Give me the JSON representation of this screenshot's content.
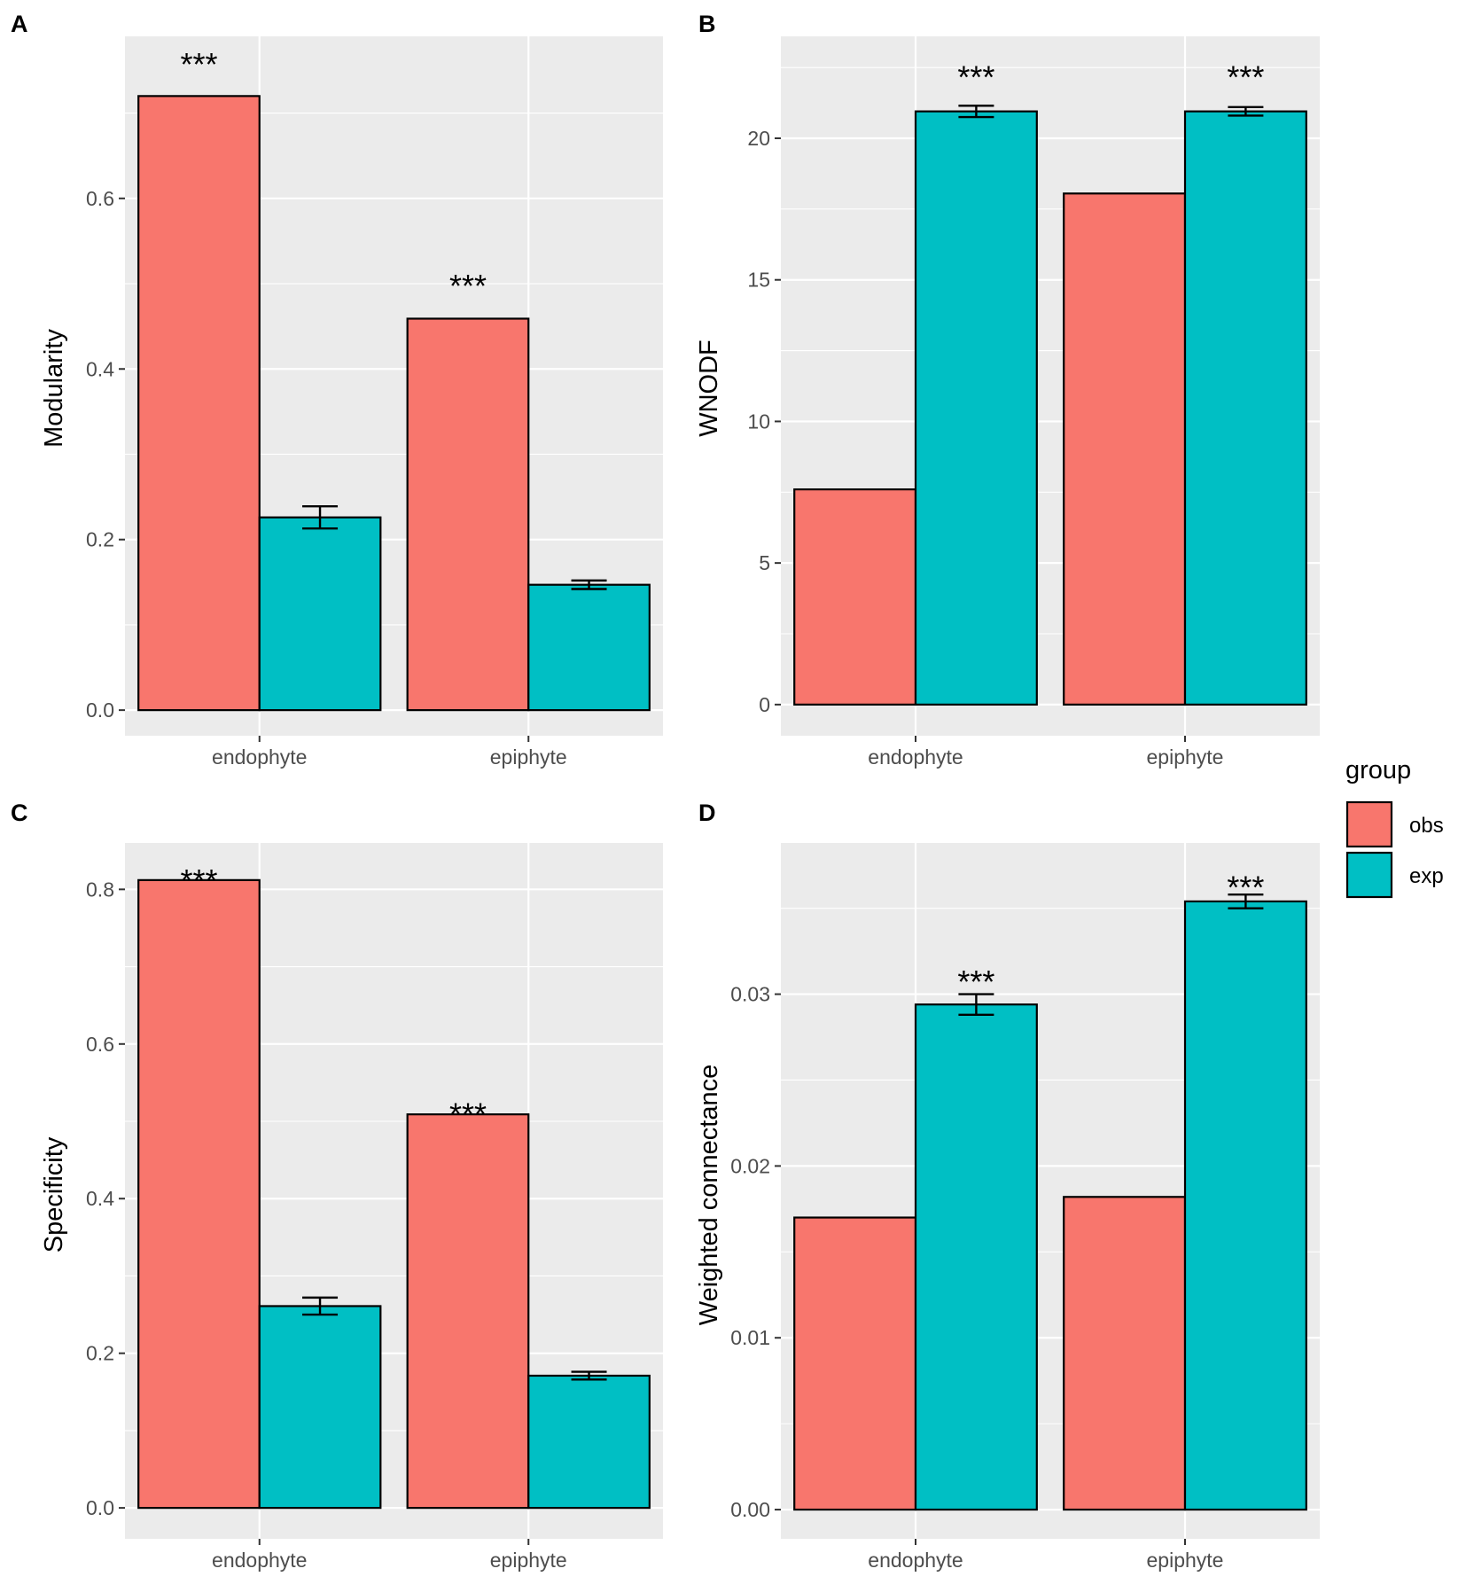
{
  "colors": {
    "obs": "#F8766D",
    "exp": "#00BFC4",
    "panel_bg": "#EBEBEB",
    "grid": "#FFFFFF",
    "outline": "#000000"
  },
  "legend": {
    "title": "group",
    "items": [
      {
        "key": "obs",
        "label": "obs"
      },
      {
        "key": "exp",
        "label": "exp"
      }
    ]
  },
  "chart_data": [
    {
      "panel": "A",
      "type": "bar",
      "ylabel": "Modularity",
      "xlabel": "",
      "categories": [
        "endophyte",
        "epiphyte"
      ],
      "ylim": [
        -0.03,
        0.79
      ],
      "yticks": [
        0.0,
        0.2,
        0.4,
        0.6
      ],
      "tick_labels": [
        "0.0",
        "0.2",
        "0.4",
        "0.6"
      ],
      "series": [
        {
          "name": "obs",
          "values": [
            0.72,
            0.459
          ],
          "errors": [
            null,
            null
          ]
        },
        {
          "name": "exp",
          "values": [
            0.226,
            0.147
          ],
          "errors": [
            0.013,
            0.005
          ]
        }
      ],
      "annotations": [
        {
          "category": "endophyte",
          "series": "obs",
          "y": 0.765,
          "text": "***"
        },
        {
          "category": "epiphyte",
          "series": "obs",
          "y": 0.505,
          "text": "***"
        }
      ]
    },
    {
      "panel": "B",
      "type": "bar",
      "ylabel": "WNODF",
      "xlabel": "",
      "categories": [
        "endophyte",
        "epiphyte"
      ],
      "ylim": [
        -1.1,
        23.6
      ],
      "yticks": [
        0,
        5,
        10,
        15,
        20
      ],
      "tick_labels": [
        "0",
        "5",
        "10",
        "15",
        "20"
      ],
      "series": [
        {
          "name": "obs",
          "values": [
            7.6,
            18.05
          ],
          "errors": [
            null,
            null
          ]
        },
        {
          "name": "exp",
          "values": [
            20.95,
            20.95
          ],
          "errors": [
            0.2,
            0.15
          ]
        }
      ],
      "annotations": [
        {
          "category": "endophyte",
          "series": "exp",
          "y": 22.4,
          "text": "***"
        },
        {
          "category": "epiphyte",
          "series": "exp",
          "y": 22.4,
          "text": "***"
        }
      ]
    },
    {
      "panel": "C",
      "type": "bar",
      "ylabel": "Specificity",
      "xlabel": "",
      "categories": [
        "endophyte",
        "epiphyte"
      ],
      "ylim": [
        -0.04,
        0.86
      ],
      "yticks": [
        0.0,
        0.2,
        0.4,
        0.6,
        0.8
      ],
      "tick_labels": [
        "0.0",
        "0.2",
        "0.4",
        "0.6",
        "0.8"
      ],
      "series": [
        {
          "name": "obs",
          "values": [
            0.812,
            0.509
          ],
          "errors": [
            null,
            null
          ]
        },
        {
          "name": "exp",
          "values": [
            0.261,
            0.171
          ],
          "errors": [
            0.011,
            0.005
          ]
        }
      ],
      "annotations": [
        {
          "category": "endophyte",
          "series": "obs",
          "y": 0.82,
          "text": "***"
        },
        {
          "category": "epiphyte",
          "series": "obs",
          "y": 0.518,
          "text": "***"
        }
      ]
    },
    {
      "panel": "D",
      "type": "bar",
      "ylabel": "Weighted connectance",
      "xlabel": "",
      "categories": [
        "endophyte",
        "epiphyte"
      ],
      "ylim": [
        -0.0017,
        0.0388
      ],
      "yticks": [
        0.0,
        0.01,
        0.02,
        0.03
      ],
      "tick_labels": [
        "0.00",
        "0.01",
        "0.02",
        "0.03"
      ],
      "series": [
        {
          "name": "obs",
          "values": [
            0.017,
            0.0182
          ],
          "errors": [
            null,
            null
          ]
        },
        {
          "name": "exp",
          "values": [
            0.0294,
            0.0354
          ],
          "errors": [
            0.0006,
            0.0004
          ]
        }
      ],
      "annotations": [
        {
          "category": "endophyte",
          "series": "exp",
          "y": 0.0311,
          "text": "***"
        },
        {
          "category": "epiphyte",
          "series": "exp",
          "y": 0.0366,
          "text": "***"
        }
      ]
    }
  ]
}
